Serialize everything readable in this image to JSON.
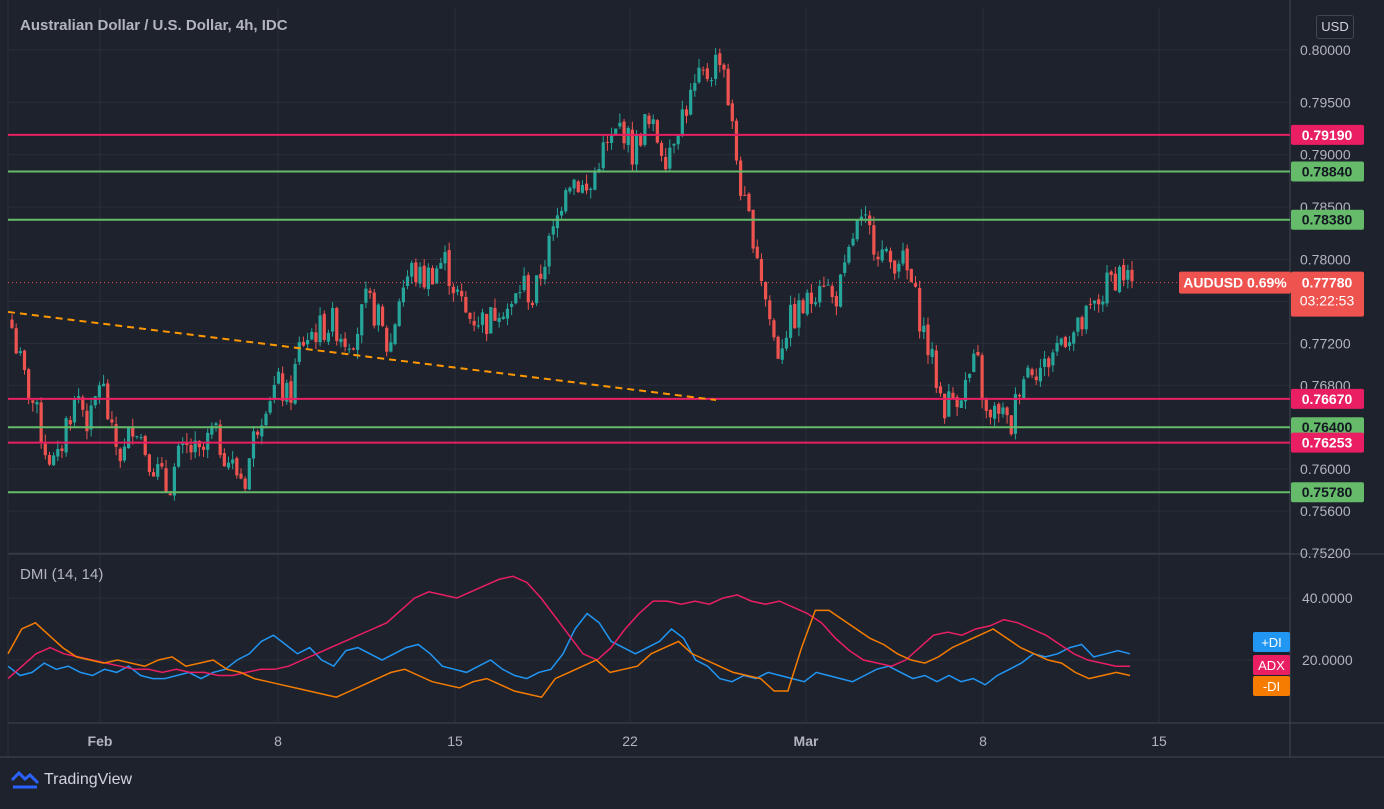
{
  "header": {
    "title": "Australian Dollar / U.S. Dollar, 4h, IDC",
    "currency": "USD"
  },
  "indicator": {
    "title": "DMI (14, 14)",
    "labels": [
      {
        "text": "+DI",
        "color": "#2196f3"
      },
      {
        "text": "ADX",
        "color": "#e91e63"
      },
      {
        "text": "-DI",
        "color": "#f57c00"
      }
    ],
    "yticks": [
      "40.0000",
      "20.0000"
    ]
  },
  "footer": {
    "brand": "TradingView"
  },
  "colors": {
    "background": "#1e222d",
    "grid": "#2a2e39",
    "up": "#26a69a",
    "down": "#ef5350",
    "support_green": "#66bb6a",
    "resistance_pink": "#e91e63",
    "trend": "#ff9800"
  },
  "chart_data": {
    "type": "candlestick",
    "symbol": "AUDUSD",
    "timeframe": "4h",
    "ylim": [
      0.752,
      0.804
    ],
    "yticks": [
      "0.80000",
      "0.79500",
      "0.79000",
      "0.78500",
      "0.78000",
      "0.77600",
      "0.77200",
      "0.76800",
      "0.76400",
      "0.76000",
      "0.75600",
      "0.75200"
    ],
    "xticks": [
      "Feb",
      "8",
      "15",
      "22",
      "Mar",
      "8",
      "15"
    ],
    "price_lines": [
      {
        "label": "0.79190",
        "value": 0.7919,
        "kind": "resistance",
        "color": "#e91e63"
      },
      {
        "label": "0.78840",
        "value": 0.7884,
        "kind": "support",
        "color": "#66bb6a"
      },
      {
        "label": "0.78380",
        "value": 0.7838,
        "kind": "support",
        "color": "#66bb6a"
      },
      {
        "label": "0.76670",
        "value": 0.7667,
        "kind": "resistance",
        "color": "#e91e63"
      },
      {
        "label": "0.76400",
        "value": 0.764,
        "kind": "support",
        "color": "#66bb6a"
      },
      {
        "label": "0.76253",
        "value": 0.76253,
        "kind": "resistance",
        "color": "#e91e63"
      },
      {
        "label": "0.75780",
        "value": 0.7578,
        "kind": "support",
        "color": "#66bb6a"
      }
    ],
    "last_price": {
      "label": "AUDUSD 0.69%",
      "price": "0.77780",
      "countdown": "03:22:53",
      "value": 0.7778
    },
    "trendline": {
      "from": {
        "x": "Jan 25",
        "y": 0.775
      },
      "to": {
        "x": "Feb 26",
        "y": 0.7666
      }
    },
    "price_path": [
      0.7735,
      0.769,
      0.766,
      0.762,
      0.76,
      0.765,
      0.767,
      0.764,
      0.769,
      0.763,
      0.761,
      0.765,
      0.762,
      0.76,
      0.758,
      0.761,
      0.762,
      0.761,
      0.7635,
      0.762,
      0.76,
      0.759,
      0.764,
      0.767,
      0.768,
      0.7665,
      0.772,
      0.773,
      0.7735,
      0.774,
      0.7725,
      0.773,
      0.776,
      0.7745,
      0.771,
      0.777,
      0.779,
      0.778,
      0.779,
      0.78,
      0.777,
      0.7745,
      0.7745,
      0.774,
      0.776,
      0.775,
      0.778,
      0.776,
      0.78,
      0.783,
      0.788,
      0.7875,
      0.786,
      0.79,
      0.791,
      0.793,
      0.79,
      0.793,
      0.792,
      0.79,
      0.793,
      0.795,
      0.797,
      0.798,
      0.8,
      0.792,
      0.785,
      0.782,
      0.776,
      0.771,
      0.774,
      0.775,
      0.776,
      0.779,
      0.776,
      0.778,
      0.783,
      0.783,
      0.7815,
      0.7795,
      0.7805,
      0.778,
      0.774,
      0.77,
      0.766,
      0.767,
      0.768,
      0.7705,
      0.764,
      0.766,
      0.7635,
      0.769,
      0.77,
      0.7695,
      0.7715,
      0.773,
      0.773,
      0.7745,
      0.776,
      0.778,
      0.779,
      0.7778
    ],
    "series": [
      {
        "name": "+DI",
        "color": "#2196f3",
        "values": [
          18,
          15,
          16,
          19,
          17,
          18,
          16,
          15,
          17,
          16,
          18,
          15,
          14,
          14,
          15,
          16,
          14,
          16,
          17,
          20,
          22,
          26,
          28,
          25,
          22,
          24,
          20,
          18,
          23,
          24,
          22,
          20,
          22,
          24,
          25,
          22,
          18,
          17,
          16,
          18,
          20,
          17,
          15,
          14,
          16,
          17,
          22,
          30,
          35,
          32,
          26,
          24,
          22,
          24,
          26,
          30,
          27,
          20,
          18,
          14,
          13,
          15,
          14,
          16,
          15,
          14,
          13,
          16,
          15,
          14,
          13,
          15,
          17,
          18,
          16,
          14,
          15,
          13,
          15,
          13,
          14,
          12,
          15,
          17,
          19,
          22,
          21,
          22,
          24,
          25,
          21,
          22,
          23,
          22
        ],
        "palette_note": ""
      },
      {
        "name": "ADX",
        "color": "#e91e63",
        "values": [
          14,
          18,
          22,
          24,
          22,
          21,
          20,
          19,
          18,
          17,
          17,
          16,
          17,
          16,
          16,
          15,
          15,
          16,
          17,
          17,
          18,
          20,
          22,
          24,
          26,
          28,
          30,
          32,
          36,
          40,
          42,
          41,
          40,
          42,
          44,
          46,
          47,
          45,
          40,
          34,
          28,
          22,
          20,
          24,
          30,
          35,
          39,
          39,
          38,
          39,
          38,
          40,
          41,
          39,
          38,
          39,
          37,
          35,
          32,
          27,
          23,
          20,
          19,
          18,
          20,
          24,
          28,
          29,
          28,
          30,
          31,
          33,
          32,
          30,
          28,
          25,
          22,
          20,
          19,
          18,
          18
        ]
      },
      {
        "name": "-DI",
        "color": "#f57c00",
        "values": [
          22,
          30,
          32,
          28,
          24,
          21,
          20,
          19,
          20,
          19,
          18,
          20,
          21,
          18,
          19,
          20,
          17,
          16,
          14,
          13,
          12,
          11,
          10,
          9,
          8,
          10,
          12,
          14,
          16,
          17,
          15,
          13,
          12,
          11,
          13,
          14,
          12,
          10,
          9,
          8,
          14,
          16,
          18,
          20,
          16,
          17,
          18,
          22,
          24,
          26,
          22,
          20,
          18,
          16,
          15,
          14,
          10,
          10,
          24,
          36,
          36,
          33,
          30,
          27,
          25,
          22,
          20,
          19,
          21,
          24,
          26,
          28,
          30,
          27,
          24,
          22,
          20,
          19,
          16,
          14,
          15,
          16,
          15
        ]
      }
    ]
  }
}
